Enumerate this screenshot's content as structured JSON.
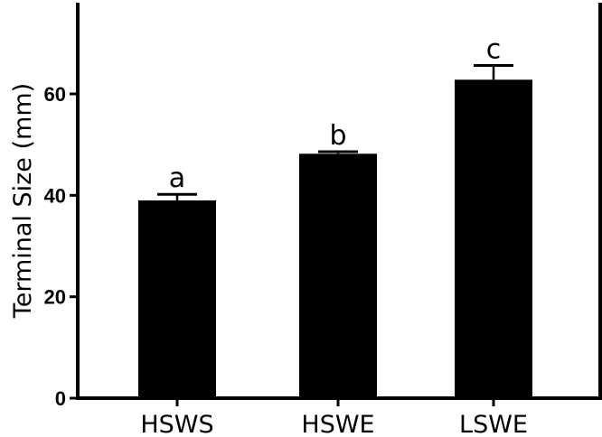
{
  "chart_data": {
    "type": "bar",
    "title": "",
    "xlabel": "",
    "ylabel": "Terminal Size (mm)",
    "categories": [
      "HSWS",
      "HSWE",
      "LSWE"
    ],
    "values": [
      39.0,
      48.2,
      62.8
    ],
    "errors": [
      1.2,
      0.4,
      2.8
    ],
    "significance_letters": [
      "a",
      "b",
      "c"
    ],
    "ylim": [
      0,
      78
    ],
    "yticks": [
      0,
      20,
      40,
      60
    ],
    "ytick_labels": [
      "0",
      "20",
      "40",
      "60"
    ],
    "grid": false,
    "legend": null,
    "bar_color": "#000000"
  }
}
